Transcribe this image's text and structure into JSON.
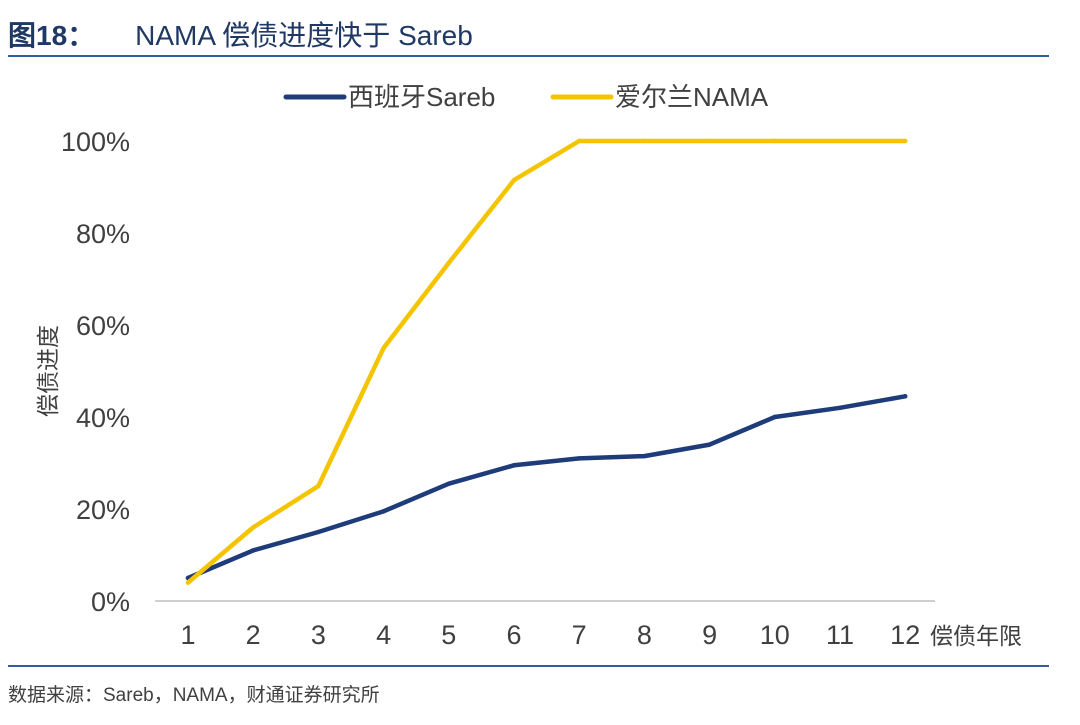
{
  "figure": {
    "number": "图18：",
    "title": "NAMA 偿债进度快于 Sareb",
    "source": "数据来源：Sareb，NAMA，财通证券研究所"
  },
  "chart_data": {
    "type": "line",
    "x": [
      1,
      2,
      3,
      4,
      5,
      6,
      7,
      8,
      9,
      10,
      11,
      12
    ],
    "categories": [
      "1",
      "2",
      "3",
      "4",
      "5",
      "6",
      "7",
      "8",
      "9",
      "10",
      "11",
      "12"
    ],
    "series": [
      {
        "name": "西班牙Sareb",
        "color": "#1f3c7a",
        "values": [
          5,
          11,
          15,
          19.5,
          25.5,
          29.5,
          31,
          31.5,
          34,
          40,
          42,
          44.5
        ]
      },
      {
        "name": "爱尔兰NAMA",
        "color": "#f5c400",
        "values": [
          4,
          16,
          25,
          55,
          73.5,
          91.5,
          100,
          100,
          100,
          100,
          100,
          100
        ]
      }
    ],
    "xlabel": "偿债年限",
    "ylabel": "偿债进度",
    "ylim": [
      0,
      100
    ],
    "yticks": [
      0,
      20,
      40,
      60,
      80,
      100
    ],
    "ytick_labels": [
      "0%",
      "20%",
      "40%",
      "60%",
      "80%",
      "100%"
    ],
    "grid": false,
    "legend_position": "top"
  }
}
